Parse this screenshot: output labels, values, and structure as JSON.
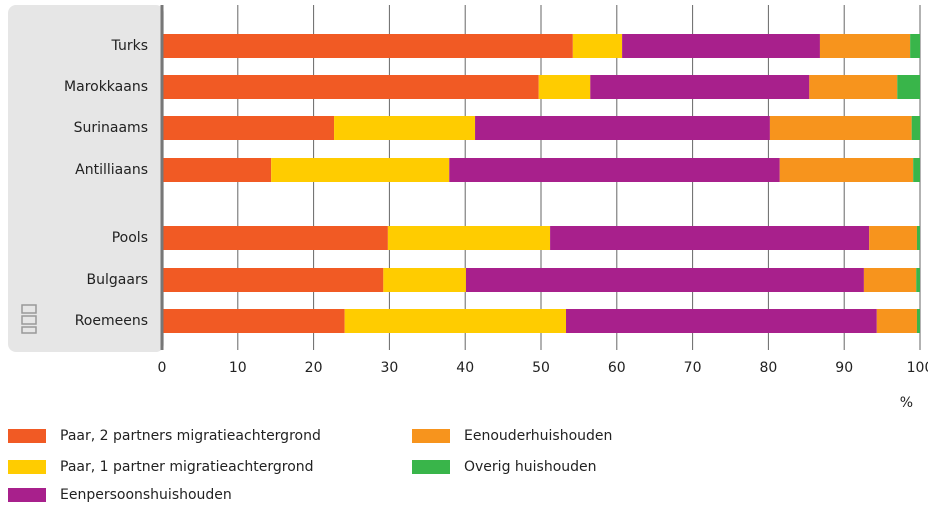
{
  "chart_data": {
    "type": "stacked-bar-horizontal",
    "categories": [
      "Turks",
      "Marokkaans",
      "Surinaams",
      "Antilliaans",
      null,
      "Pools",
      "Bulgaars",
      "Roemeens"
    ],
    "series": [
      {
        "name": "Paar, 2 partners migratieachtergrond",
        "color": "#f15a24",
        "values": [
          54.2,
          49.7,
          22.7,
          14.4,
          null,
          29.8,
          29.2,
          24.1
        ]
      },
      {
        "name": "Paar, 1 partner migratieachtergrond",
        "color": "#ffcc00",
        "values": [
          6.5,
          6.8,
          18.6,
          23.5,
          null,
          21.4,
          10.9,
          29.2
        ]
      },
      {
        "name": "Eenpersoonshuishouden",
        "color": "#a8208c",
        "values": [
          26.1,
          28.9,
          38.9,
          43.6,
          null,
          42.1,
          52.5,
          41.0
        ]
      },
      {
        "name": "Eenouderhuishouden",
        "color": "#f7941d",
        "values": [
          11.9,
          11.6,
          18.7,
          17.6,
          null,
          6.3,
          6.9,
          5.3
        ]
      },
      {
        "name": "Overig huishouden",
        "color": "#39b54a",
        "values": [
          1.3,
          3.0,
          1.1,
          0.9,
          null,
          0.4,
          0.5,
          0.4
        ]
      }
    ],
    "xlim": [
      0,
      100
    ],
    "xticks": [
      0,
      10,
      20,
      30,
      40,
      50,
      60,
      70,
      80,
      90,
      100
    ],
    "x_unit": "%",
    "grid": true
  }
}
